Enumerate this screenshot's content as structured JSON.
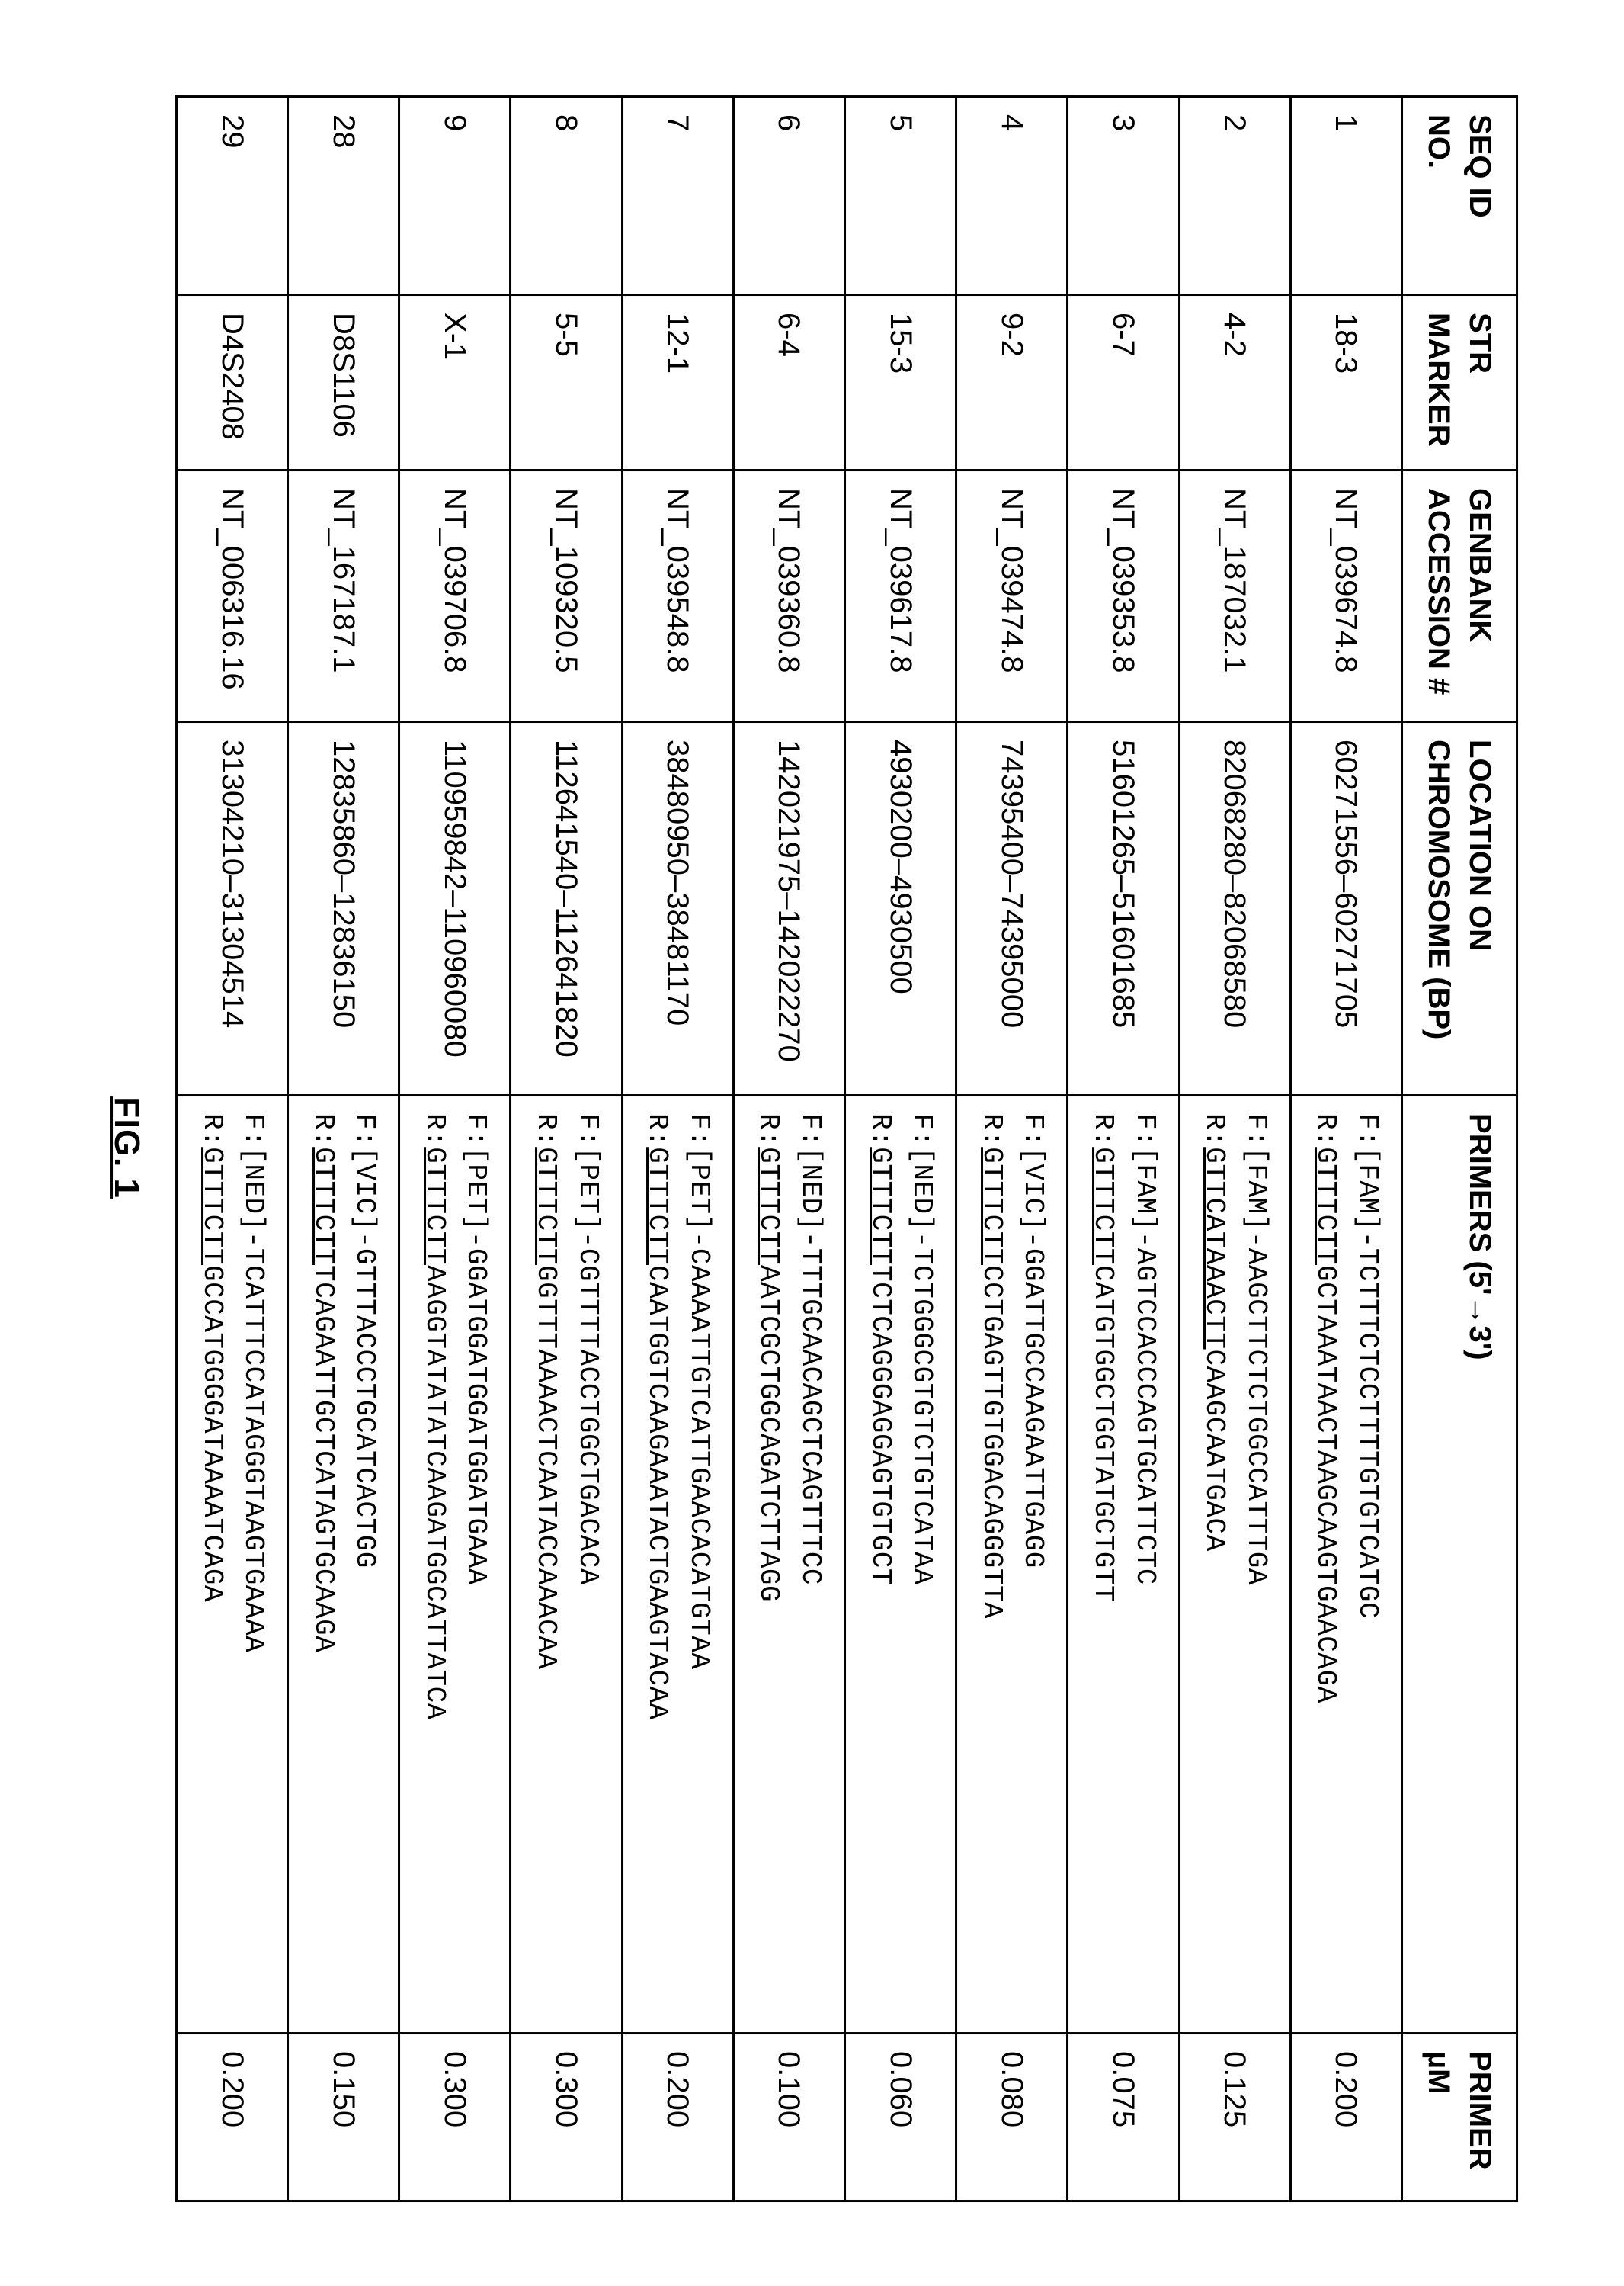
{
  "figure_label": "FIG. 1",
  "columns": [
    "SEQ ID NO.",
    "STR MARKER",
    "GENBANK ACCESSION #",
    "LOCATION ON CHROMOSOME (BP)",
    "PRIMERS (5'→3')",
    "PRIMER µM"
  ],
  "rows": [
    {
      "seq_id": "1",
      "marker": "18-3",
      "accession": "NT_039674.8",
      "location": "60271556–60271705",
      "primer_f_prefix": "F:[FAM]-",
      "primer_f_seq": "TCTTTCTCCTTTTGTGTCATGC",
      "primer_r_prefix": "R:",
      "primer_r_tag": "GTTTCTT",
      "primer_r_seq": "GCTAAATAACTAAGCAAGTGAACAGA",
      "primer_um": "0.200"
    },
    {
      "seq_id": "2",
      "marker": "4-2",
      "accession": "NT_187032.1",
      "location": "82068280–82068580",
      "primer_f_prefix": "F:[FAM]-",
      "primer_f_seq": "AAGCTTCTCTGGCCATTTGA",
      "primer_r_prefix": "R:",
      "primer_r_tag": "GTTCATAAACTT",
      "primer_r_seq": "CAAGCAATGACA",
      "primer_um": "0.125"
    },
    {
      "seq_id": "3",
      "marker": "6-7",
      "accession": "NT_039353.8",
      "location": "51601265–51601685",
      "primer_f_prefix": "F:[FAM]-",
      "primer_f_seq": "AGTCCACCCAGTGCATTCTC",
      "primer_r_prefix": "R:",
      "primer_r_tag": "GTTTCTT",
      "primer_r_seq": "CATGTGGCTGGTATGCTGTT",
      "primer_um": "0.075"
    },
    {
      "seq_id": "4",
      "marker": "9-2",
      "accession": "NT_039474.8",
      "location": "74395400–74395000",
      "primer_f_prefix": "F:[VIC]-",
      "primer_f_seq": "GGATTGCCAAGAATTGAGG",
      "primer_r_prefix": "R:",
      "primer_r_tag": "GTTTCTT",
      "primer_r_seq": "CCTGAGTTGTGGACAGGGTTA",
      "primer_um": "0.080"
    },
    {
      "seq_id": "5",
      "marker": "15-3",
      "accession": "NT_039617.8",
      "location": "4930200–4930500",
      "primer_f_prefix": "F:[NED]-",
      "primer_f_seq": "TCTGGGCGTGTCTGTCATAA",
      "primer_r_prefix": "R:",
      "primer_r_tag": "GTTTCTT",
      "primer_r_seq": "TCTCAGGGAGGAGTGTGCT",
      "primer_um": "0.060"
    },
    {
      "seq_id": "6",
      "marker": "6-4",
      "accession": "NT_039360.8",
      "location": "142021975–142022270",
      "primer_f_prefix": "F:[NED]-",
      "primer_f_seq": "TTTGCAACAGCTCAGTTTCC",
      "primer_r_prefix": "R:",
      "primer_r_tag": "GTTTCTT",
      "primer_r_seq": "AATCGCTGGCAGATCTTAGG",
      "primer_um": "0.100"
    },
    {
      "seq_id": "7",
      "marker": "12-1",
      "accession": "NT_039548.8",
      "location": "38480950–38481170",
      "primer_f_prefix": "F:[PET]-",
      "primer_f_seq": "CAAAATTGTCATTGAACACATGTAA",
      "primer_r_prefix": "R:",
      "primer_r_tag": "GTTTCTT",
      "primer_r_seq": "CAATGGTCAAGAAATACTGAAGTACAA",
      "primer_um": "0.200"
    },
    {
      "seq_id": "8",
      "marker": "5-5",
      "accession": "NT_109320.5",
      "location": "112641540–112641820",
      "primer_f_prefix": "F:[PET]-",
      "primer_f_seq": "CGTTTTACCTGGCTGACACA",
      "primer_r_prefix": "R:",
      "primer_r_tag": "GTTTCTT",
      "primer_r_seq": "GGTTTAAAACTCAATACCAAACAA",
      "primer_um": "0.300"
    },
    {
      "seq_id": "9",
      "marker": "X-1",
      "accession": "NT_039706.8",
      "location": "110959842–110960080",
      "primer_f_prefix": "F:[PET]-",
      "primer_f_seq": "GGATGGATGGATGGATGAAA",
      "primer_r_prefix": "R:",
      "primer_r_tag": "GTTTCTT",
      "primer_r_seq": "AAGGTATATATCAAGATGGCATTATCA",
      "primer_um": "0.300"
    },
    {
      "seq_id": "28",
      "marker": "D8S1106",
      "accession": "NT_167187.1",
      "location": "12835860–12836150",
      "primer_f_prefix": "F:[VIC]-",
      "primer_f_seq": "GTTTACCCTGCATCACTGG",
      "primer_r_prefix": "R:",
      "primer_r_tag": "GTTTCTT",
      "primer_r_seq": "TCAGAATTGCTCATAGTGCAAGA",
      "primer_um": "0.150"
    },
    {
      "seq_id": "29",
      "marker": "D4S2408",
      "accession": "NT_006316.16",
      "location": "31304210–31304514",
      "primer_f_prefix": "F:[NED]-",
      "primer_f_seq": "TCATTTCCATAGGGTAAGTGAAAA",
      "primer_r_prefix": "R:",
      "primer_r_tag": "GTTTCTT",
      "primer_r_seq": "GCCATGGGGATAAAATCAGA",
      "primer_um": "0.200"
    }
  ]
}
